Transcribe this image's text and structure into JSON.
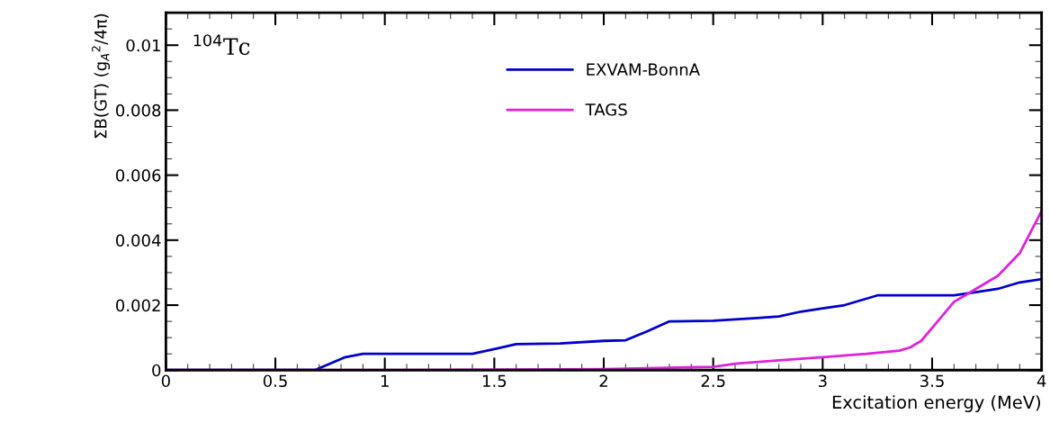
{
  "chart_data": {
    "type": "line",
    "xlabel": "Excitation energy (MeV)",
    "ylabel": "ΣB(GT) (g$_{A}$$^{2}$/4π)",
    "annotations": [
      "$^{104}$Tc"
    ],
    "xlim": [
      0,
      4
    ],
    "xticks": [
      0,
      0.5,
      1,
      1.5,
      2,
      2.5,
      3,
      3.5,
      4
    ],
    "ylim": [
      0,
      0.011
    ],
    "yticks": [
      0,
      0.002,
      0.004,
      0.006,
      0.008,
      0.01
    ],
    "grid": false,
    "legend": "top",
    "marker": "none",
    "line_style": "solid",
    "series": [
      {
        "name": "EXVAM-BonnA",
        "color": "#0000cc",
        "x": [
          0,
          0.68,
          0.75,
          0.82,
          0.9,
          1.0,
          1.4,
          1.5,
          1.6,
          1.8,
          2.0,
          2.1,
          2.2,
          2.3,
          2.5,
          2.7,
          2.8,
          2.9,
          3.0,
          3.1,
          3.25,
          3.6,
          3.7,
          3.8,
          3.9,
          4.0
        ],
        "values": [
          0,
          0,
          0.0002,
          0.0004,
          0.0005,
          0.0005,
          0.0005,
          0.00065,
          0.0008,
          0.00082,
          0.0009,
          0.00092,
          0.0012,
          0.0015,
          0.00152,
          0.0016,
          0.00165,
          0.0018,
          0.0019,
          0.002,
          0.0023,
          0.0023,
          0.0024,
          0.0025,
          0.0027,
          0.0028
        ]
      },
      {
        "name": "TAGS",
        "color": "#dd22dd",
        "x": [
          0,
          1.0,
          2.0,
          2.2,
          2.5,
          2.6,
          2.8,
          3.0,
          3.2,
          3.35,
          3.4,
          3.45,
          3.5,
          3.55,
          3.6,
          3.65,
          3.7,
          3.8,
          3.9,
          4.0
        ],
        "values": [
          0,
          0,
          3e-05,
          6e-05,
          0.0001,
          0.0002,
          0.0003,
          0.0004,
          0.0005,
          0.0006,
          0.0007,
          0.0009,
          0.0013,
          0.0017,
          0.0021,
          0.0023,
          0.0025,
          0.0029,
          0.0036,
          0.0049
        ]
      }
    ]
  }
}
